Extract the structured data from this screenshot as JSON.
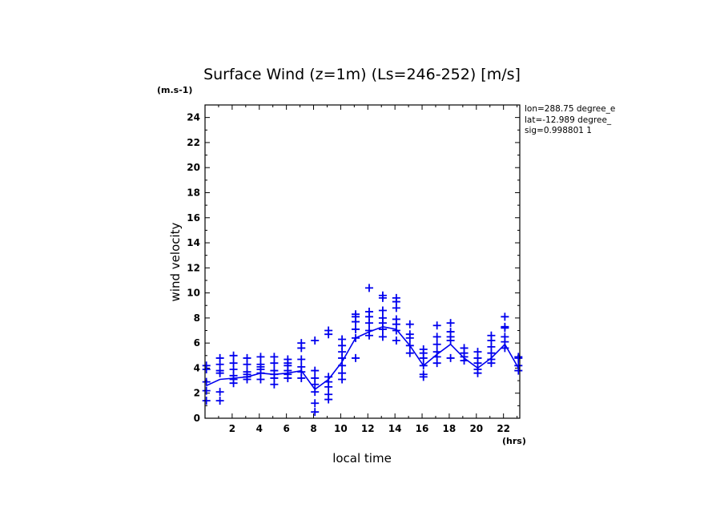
{
  "chart_data": {
    "type": "scatter",
    "title": "Surface Wind (z=1m) (Ls=246-252) [m/s]",
    "y_unit": "(m.s-1)",
    "x_unit": "(hrs)",
    "xlabel": "local time",
    "ylabel": "wind velocity",
    "xlim": [
      0,
      23.2
    ],
    "ylim": [
      0,
      25
    ],
    "x_ticks": [
      "2",
      "4",
      "6",
      "8",
      "10",
      "12",
      "14",
      "16",
      "18",
      "20",
      "22"
    ],
    "y_ticks": [
      "0",
      "2",
      "4",
      "6",
      "8",
      "10",
      "12",
      "14",
      "16",
      "18",
      "20",
      "22",
      "24"
    ],
    "info": [
      "lon=288.75 degree_e",
      "lat=-12.989 degree_",
      "sig=0.998801 1"
    ],
    "marker_color": "#0000ee",
    "series": [
      {
        "style": "markers",
        "points": [
          {
            "x": 0.1,
            "y": [
              1.4,
              2.2,
              2.9,
              3.9,
              4.2
            ]
          },
          {
            "x": 1.1,
            "y": [
              1.4,
              2.1,
              3.6,
              3.8,
              4.3,
              4.8
            ]
          },
          {
            "x": 2.1,
            "y": [
              2.8,
              3.1,
              3.4,
              3.9,
              4.4,
              5.0
            ]
          },
          {
            "x": 3.1,
            "y": [
              3.1,
              3.3,
              3.5,
              3.7,
              4.3,
              4.8
            ]
          },
          {
            "x": 4.1,
            "y": [
              3.1,
              3.6,
              3.9,
              4.1,
              4.3,
              4.9
            ]
          },
          {
            "x": 5.1,
            "y": [
              2.7,
              3.2,
              3.5,
              3.8,
              4.4,
              4.9
            ]
          },
          {
            "x": 6.1,
            "y": [
              3.2,
              3.5,
              3.8,
              4.2,
              4.4,
              4.7
            ]
          },
          {
            "x": 7.1,
            "y": [
              3.2,
              3.7,
              4.1,
              4.7,
              5.6,
              6.0
            ]
          },
          {
            "x": 8.1,
            "y": [
              0.5,
              1.2,
              2.1,
              2.7,
              3.2,
              3.8,
              6.2
            ]
          },
          {
            "x": 9.1,
            "y": [
              1.5,
              1.9,
              2.5,
              2.9,
              3.3,
              6.7,
              7.0
            ]
          },
          {
            "x": 10.1,
            "y": [
              3.1,
              3.6,
              4.2,
              4.8,
              5.3,
              5.8,
              6.3
            ]
          },
          {
            "x": 11.1,
            "y": [
              4.8,
              6.4,
              7.1,
              7.7,
              8.1,
              8.3
            ]
          },
          {
            "x": 12.1,
            "y": [
              6.6,
              7.0,
              7.6,
              8.1,
              8.5,
              10.4
            ]
          },
          {
            "x": 13.1,
            "y": [
              6.5,
              7.1,
              7.6,
              8.0,
              8.6,
              9.6,
              9.8
            ]
          },
          {
            "x": 14.1,
            "y": [
              6.2,
              7.0,
              7.5,
              7.9,
              8.8,
              9.3,
              9.6
            ]
          },
          {
            "x": 15.1,
            "y": [
              5.2,
              5.8,
              6.4,
              6.7,
              7.5
            ]
          },
          {
            "x": 16.1,
            "y": [
              3.3,
              3.5,
              4.2,
              4.8,
              5.2,
              5.5
            ]
          },
          {
            "x": 17.1,
            "y": [
              4.4,
              4.9,
              5.3,
              5.9,
              6.5,
              7.4
            ]
          },
          {
            "x": 18.1,
            "y": [
              4.8,
              6.2,
              6.5,
              6.9,
              7.6
            ]
          },
          {
            "x": 19.1,
            "y": [
              4.6,
              4.9,
              5.2,
              5.6
            ]
          },
          {
            "x": 20.1,
            "y": [
              3.6,
              3.9,
              4.4,
              4.8,
              5.3
            ]
          },
          {
            "x": 21.1,
            "y": [
              4.4,
              4.7,
              5.2,
              5.7,
              6.2,
              6.6
            ]
          },
          {
            "x": 22.1,
            "y": [
              5.6,
              6.1,
              6.5,
              7.2,
              7.3,
              8.1
            ]
          },
          {
            "x": 23.1,
            "y": [
              3.8,
              4.2,
              4.8,
              4.9
            ]
          }
        ]
      },
      {
        "style": "line",
        "x": [
          0.1,
          1.1,
          2.1,
          3.1,
          4.1,
          5.1,
          6.1,
          7.1,
          8.1,
          9.1,
          10.1,
          11.1,
          12.1,
          13.1,
          14.1,
          15.1,
          16.1,
          17.1,
          18.1,
          19.1,
          20.1,
          21.1,
          22.1,
          23.1
        ],
        "y": [
          2.6,
          3.1,
          3.2,
          3.3,
          3.6,
          3.5,
          3.6,
          3.8,
          2.3,
          3.1,
          4.5,
          6.4,
          6.9,
          7.3,
          7.1,
          5.8,
          4.2,
          5.1,
          5.9,
          4.8,
          4.0,
          4.8,
          5.9,
          4.0
        ]
      }
    ]
  }
}
